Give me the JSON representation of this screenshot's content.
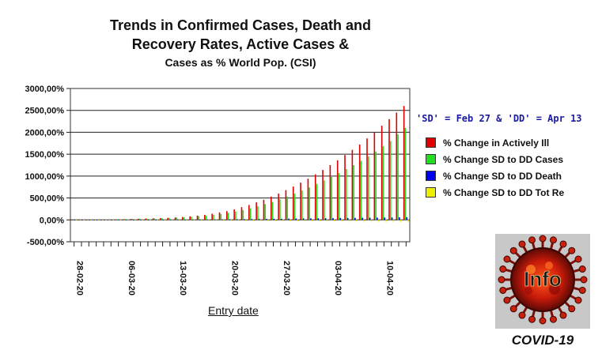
{
  "chart_data": {
    "type": "bar",
    "title_lines": [
      "Trends in Confirmed Cases, Death and",
      "Recovery Rates, Active Cases &",
      "Cases as % World Pop. (CSI)"
    ],
    "xlabel": "Entry date",
    "ylabel": "",
    "note": "'SD' = Feb 27 & 'DD' = Apr 13",
    "y_ticks": [
      3000,
      2500,
      2000,
      1500,
      1000,
      500,
      0,
      -500
    ],
    "y_tick_labels": [
      "3000,00%",
      "2500,00%",
      "2000,00%",
      "1500,00%",
      "1000,00%",
      "500,00%",
      "0,00%",
      "-500,00%"
    ],
    "ylim": [
      -500,
      3000
    ],
    "grid": "horizontal",
    "legend_position": "right",
    "x_tick_labels": [
      {
        "index": 0,
        "label": "28-02-20"
      },
      {
        "index": 7,
        "label": "06-03-20"
      },
      {
        "index": 14,
        "label": "13-03-20"
      },
      {
        "index": 21,
        "label": "20-03-20"
      },
      {
        "index": 28,
        "label": "27-03-20"
      },
      {
        "index": 35,
        "label": "03-04-20"
      },
      {
        "index": 42,
        "label": "10-04-20"
      }
    ],
    "dates": [
      "2020-02-28",
      "2020-02-29",
      "2020-03-01",
      "2020-03-02",
      "2020-03-03",
      "2020-03-04",
      "2020-03-05",
      "2020-03-06",
      "2020-03-07",
      "2020-03-08",
      "2020-03-09",
      "2020-03-10",
      "2020-03-11",
      "2020-03-12",
      "2020-03-13",
      "2020-03-14",
      "2020-03-15",
      "2020-03-16",
      "2020-03-17",
      "2020-03-18",
      "2020-03-19",
      "2020-03-20",
      "2020-03-21",
      "2020-03-22",
      "2020-03-23",
      "2020-03-24",
      "2020-03-25",
      "2020-03-26",
      "2020-03-27",
      "2020-03-28",
      "2020-03-29",
      "2020-03-30",
      "2020-03-31",
      "2020-04-01",
      "2020-04-02",
      "2020-04-03",
      "2020-04-04",
      "2020-04-05",
      "2020-04-06",
      "2020-04-07",
      "2020-04-08",
      "2020-04-09",
      "2020-04-10",
      "2020-04-11",
      "2020-04-12",
      "2020-04-13"
    ],
    "series": [
      {
        "name": "% Change in Actively Ill",
        "color": "#e00000",
        "values": [
          -10,
          -8,
          -5,
          -2,
          0,
          5,
          10,
          15,
          20,
          25,
          30,
          35,
          40,
          45,
          55,
          65,
          80,
          95,
          115,
          140,
          170,
          200,
          240,
          290,
          340,
          400,
          460,
          530,
          600,
          680,
          760,
          850,
          940,
          1040,
          1140,
          1250,
          1360,
          1480,
          1600,
          1720,
          1860,
          2000,
          2150,
          2300,
          2450,
          2600
        ]
      },
      {
        "name": "% Change SD to DD Cases",
        "color": "#22dd22",
        "values": [
          0,
          2,
          4,
          6,
          8,
          10,
          14,
          18,
          22,
          26,
          30,
          34,
          40,
          46,
          54,
          62,
          72,
          84,
          98,
          115,
          135,
          160,
          190,
          225,
          265,
          310,
          360,
          410,
          470,
          530,
          600,
          670,
          740,
          820,
          900,
          980,
          1070,
          1160,
          1250,
          1350,
          1450,
          1560,
          1680,
          1800,
          1950,
          2100
        ]
      },
      {
        "name": "% Change SD to DD Death",
        "color": "#0000ee",
        "values": [
          0,
          0,
          0,
          0,
          0,
          0,
          0,
          1,
          1,
          1,
          2,
          2,
          2,
          3,
          3,
          4,
          5,
          6,
          7,
          8,
          10,
          12,
          14,
          16,
          18,
          20,
          22,
          24,
          26,
          28,
          30,
          32,
          34,
          36,
          38,
          40,
          42,
          44,
          46,
          48,
          50,
          52,
          54,
          56,
          58,
          60
        ]
      },
      {
        "name": "% Change SD to DD Tot Re",
        "color": "#eeee00",
        "values": [
          0,
          -1,
          -2,
          -3,
          -4,
          -5,
          -6,
          -7,
          -8,
          -9,
          -10,
          -11,
          -12,
          -13,
          -14,
          -15,
          -16,
          -17,
          -18,
          -19,
          -20,
          -21,
          -22,
          -23,
          -24,
          -25,
          -26,
          -27,
          -28,
          -29,
          -30,
          -31,
          -32,
          -33,
          -34,
          -35,
          -36,
          -37,
          -38,
          -39,
          -40,
          -41,
          -42,
          -43,
          -44,
          -45
        ]
      }
    ]
  },
  "legend_items": [
    {
      "label": "% Change in Actively Ill",
      "color": "#e00000"
    },
    {
      "label": "% Change SD to DD Cases",
      "color": "#22dd22"
    },
    {
      "label": "% Change SD to DD Death",
      "color": "#0000ee"
    },
    {
      "label": "% Change SD to DD Tot Re",
      "color": "#eeee00"
    }
  ],
  "logo": {
    "text": "Info",
    "caption": "COVID-19",
    "icon": "covid-virus-icon"
  }
}
